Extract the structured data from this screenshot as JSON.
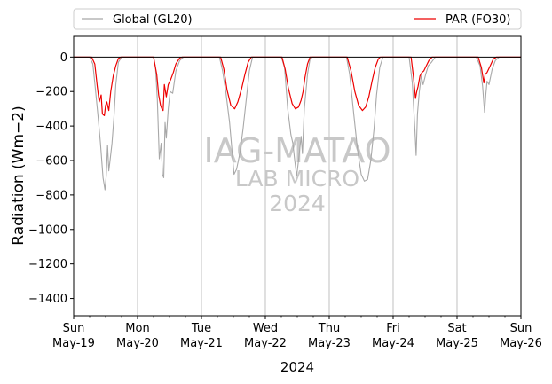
{
  "chart_data": {
    "type": "line",
    "xlabel": "2024",
    "ylabel": "Radiation (Wm−2)",
    "ylim": [
      -1500,
      120
    ],
    "yticks": [
      0,
      -200,
      -400,
      -600,
      -800,
      -1000,
      -1200,
      -1400
    ],
    "x_ticks": [
      {
        "day": 0,
        "weekday": "Sun",
        "date": "May-19"
      },
      {
        "day": 1,
        "weekday": "Mon",
        "date": "May-20"
      },
      {
        "day": 2,
        "weekday": "Tue",
        "date": "May-21"
      },
      {
        "day": 3,
        "weekday": "Wed",
        "date": "May-22"
      },
      {
        "day": 4,
        "weekday": "Thu",
        "date": "May-23"
      },
      {
        "day": 5,
        "weekday": "Fri",
        "date": "May-24"
      },
      {
        "day": 6,
        "weekday": "Sat",
        "date": "May-25"
      },
      {
        "day": 7,
        "weekday": "Sun",
        "date": "May-26"
      }
    ],
    "xlim_days": [
      0,
      7
    ],
    "legend": {
      "placement": "top, outside plot, two columns"
    },
    "watermark": {
      "line1": "IAG-MATAO",
      "line2": "LAB MICRO",
      "line3": "2024"
    },
    "series": [
      {
        "name": "Global (GL20)",
        "color": "#a8a8a8",
        "points": [
          [
            0.0,
            0
          ],
          [
            0.25,
            0
          ],
          [
            0.3,
            -40
          ],
          [
            0.33,
            -150
          ],
          [
            0.38,
            -340
          ],
          [
            0.42,
            -500
          ],
          [
            0.46,
            -700
          ],
          [
            0.49,
            -770
          ],
          [
            0.51,
            -690
          ],
          [
            0.53,
            -510
          ],
          [
            0.55,
            -660
          ],
          [
            0.57,
            -600
          ],
          [
            0.6,
            -500
          ],
          [
            0.63,
            -350
          ],
          [
            0.66,
            -160
          ],
          [
            0.7,
            -30
          ],
          [
            0.75,
            0
          ],
          [
            1.0,
            0
          ],
          [
            1.25,
            0
          ],
          [
            1.28,
            -60
          ],
          [
            1.31,
            -250
          ],
          [
            1.34,
            -590
          ],
          [
            1.37,
            -500
          ],
          [
            1.39,
            -680
          ],
          [
            1.41,
            -700
          ],
          [
            1.43,
            -380
          ],
          [
            1.45,
            -470
          ],
          [
            1.48,
            -300
          ],
          [
            1.51,
            -200
          ],
          [
            1.55,
            -210
          ],
          [
            1.6,
            -80
          ],
          [
            1.66,
            -20
          ],
          [
            1.72,
            0
          ],
          [
            2.0,
            0
          ],
          [
            2.28,
            0
          ],
          [
            2.33,
            -80
          ],
          [
            2.38,
            -200
          ],
          [
            2.44,
            -380
          ],
          [
            2.51,
            -680
          ],
          [
            2.55,
            -650
          ],
          [
            2.6,
            -560
          ],
          [
            2.65,
            -420
          ],
          [
            2.7,
            -250
          ],
          [
            2.75,
            -80
          ],
          [
            2.8,
            0
          ],
          [
            3.0,
            0
          ],
          [
            3.25,
            0
          ],
          [
            3.3,
            -60
          ],
          [
            3.35,
            -300
          ],
          [
            3.4,
            -450
          ],
          [
            3.43,
            -500
          ],
          [
            3.46,
            -600
          ],
          [
            3.49,
            -690
          ],
          [
            3.52,
            -600
          ],
          [
            3.56,
            -460
          ],
          [
            3.58,
            -560
          ],
          [
            3.61,
            -300
          ],
          [
            3.66,
            -100
          ],
          [
            3.7,
            -10
          ],
          [
            3.74,
            0
          ],
          [
            4.0,
            0
          ],
          [
            4.27,
            0
          ],
          [
            4.32,
            -100
          ],
          [
            4.38,
            -320
          ],
          [
            4.44,
            -530
          ],
          [
            4.5,
            -680
          ],
          [
            4.55,
            -720
          ],
          [
            4.6,
            -710
          ],
          [
            4.65,
            -600
          ],
          [
            4.7,
            -420
          ],
          [
            4.74,
            -220
          ],
          [
            4.79,
            -60
          ],
          [
            4.84,
            0
          ],
          [
            5.0,
            0
          ],
          [
            5.25,
            0
          ],
          [
            5.3,
            -150
          ],
          [
            5.34,
            -420
          ],
          [
            5.36,
            -570
          ],
          [
            5.38,
            -330
          ],
          [
            5.41,
            -200
          ],
          [
            5.44,
            -110
          ],
          [
            5.47,
            -160
          ],
          [
            5.51,
            -100
          ],
          [
            5.55,
            -50
          ],
          [
            5.6,
            -30
          ],
          [
            5.66,
            0
          ],
          [
            6.0,
            0
          ],
          [
            6.3,
            0
          ],
          [
            6.36,
            -50
          ],
          [
            6.4,
            -170
          ],
          [
            6.43,
            -320
          ],
          [
            6.45,
            -220
          ],
          [
            6.47,
            -140
          ],
          [
            6.5,
            -160
          ],
          [
            6.55,
            -70
          ],
          [
            6.6,
            -20
          ],
          [
            6.66,
            0
          ],
          [
            7.0,
            0
          ]
        ]
      },
      {
        "name": "PAR (FO30)",
        "color": "#ee0000",
        "points": [
          [
            0.0,
            0
          ],
          [
            0.28,
            0
          ],
          [
            0.33,
            -40
          ],
          [
            0.37,
            -170
          ],
          [
            0.4,
            -260
          ],
          [
            0.43,
            -220
          ],
          [
            0.45,
            -330
          ],
          [
            0.48,
            -340
          ],
          [
            0.5,
            -280
          ],
          [
            0.52,
            -260
          ],
          [
            0.55,
            -310
          ],
          [
            0.58,
            -200
          ],
          [
            0.62,
            -110
          ],
          [
            0.66,
            -50
          ],
          [
            0.7,
            -8
          ],
          [
            0.74,
            0
          ],
          [
            1.0,
            0
          ],
          [
            1.25,
            0
          ],
          [
            1.3,
            -100
          ],
          [
            1.33,
            -220
          ],
          [
            1.36,
            -280
          ],
          [
            1.38,
            -300
          ],
          [
            1.4,
            -310
          ],
          [
            1.42,
            -160
          ],
          [
            1.45,
            -230
          ],
          [
            1.48,
            -160
          ],
          [
            1.52,
            -130
          ],
          [
            1.56,
            -90
          ],
          [
            1.6,
            -40
          ],
          [
            1.66,
            -5
          ],
          [
            1.7,
            0
          ],
          [
            2.0,
            0
          ],
          [
            2.3,
            0
          ],
          [
            2.35,
            -70
          ],
          [
            2.4,
            -190
          ],
          [
            2.46,
            -280
          ],
          [
            2.52,
            -300
          ],
          [
            2.57,
            -260
          ],
          [
            2.63,
            -180
          ],
          [
            2.68,
            -100
          ],
          [
            2.73,
            -30
          ],
          [
            2.78,
            0
          ],
          [
            3.0,
            0
          ],
          [
            3.26,
            0
          ],
          [
            3.31,
            -70
          ],
          [
            3.36,
            -180
          ],
          [
            3.42,
            -270
          ],
          [
            3.47,
            -300
          ],
          [
            3.52,
            -290
          ],
          [
            3.56,
            -250
          ],
          [
            3.59,
            -200
          ],
          [
            3.62,
            -120
          ],
          [
            3.66,
            -40
          ],
          [
            3.7,
            0
          ],
          [
            4.0,
            0
          ],
          [
            4.28,
            0
          ],
          [
            4.34,
            -80
          ],
          [
            4.4,
            -200
          ],
          [
            4.46,
            -280
          ],
          [
            4.52,
            -310
          ],
          [
            4.57,
            -290
          ],
          [
            4.62,
            -230
          ],
          [
            4.67,
            -140
          ],
          [
            4.72,
            -60
          ],
          [
            4.77,
            -10
          ],
          [
            4.8,
            0
          ],
          [
            5.0,
            0
          ],
          [
            5.28,
            0
          ],
          [
            5.32,
            -120
          ],
          [
            5.35,
            -240
          ],
          [
            5.37,
            -200
          ],
          [
            5.39,
            -170
          ],
          [
            5.42,
            -110
          ],
          [
            5.45,
            -90
          ],
          [
            5.48,
            -80
          ],
          [
            5.52,
            -50
          ],
          [
            5.56,
            -20
          ],
          [
            5.61,
            0
          ],
          [
            6.0,
            0
          ],
          [
            6.33,
            0
          ],
          [
            6.38,
            -60
          ],
          [
            6.42,
            -150
          ],
          [
            6.44,
            -100
          ],
          [
            6.47,
            -90
          ],
          [
            6.52,
            -50
          ],
          [
            6.57,
            -10
          ],
          [
            6.62,
            0
          ],
          [
            7.0,
            0
          ]
        ]
      }
    ]
  }
}
